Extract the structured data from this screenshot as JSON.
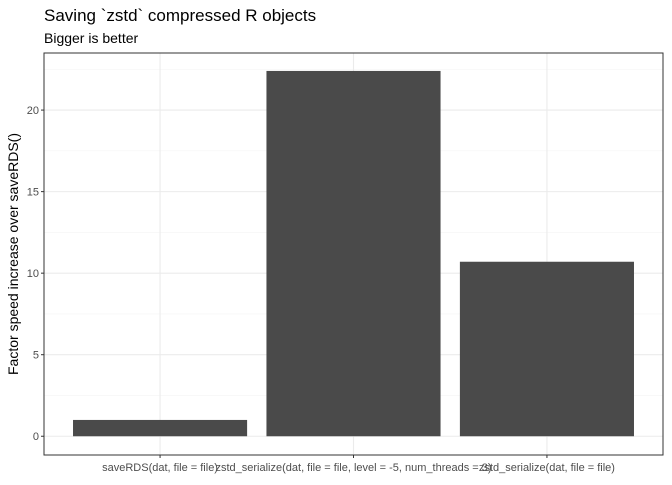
{
  "chart_data": {
    "type": "bar",
    "title": "Saving `zstd` compressed R objects",
    "subtitle": "Bigger is better",
    "xlabel": "",
    "ylabel": "Factor speed increase over saveRDS()",
    "categories": [
      "saveRDS(dat, file = file)",
      "zstd_serialize(dat, file = file, level = -5, num_threads = 3)",
      "zstd_serialize(dat, file = file)"
    ],
    "values": [
      1.0,
      22.4,
      10.7
    ],
    "ylim": [
      -1.15,
      23.5
    ],
    "yticks": [
      0,
      5,
      10,
      15,
      20
    ],
    "grid": true,
    "legend": "none",
    "colors": {
      "bar": "#4a4a4a",
      "grid_major": "#ebebeb",
      "grid_minor": "#f5f5f5",
      "panel_border": "#333333",
      "text": "#000000",
      "axis_text": "#4d4d4d",
      "tick": "#333333"
    }
  }
}
